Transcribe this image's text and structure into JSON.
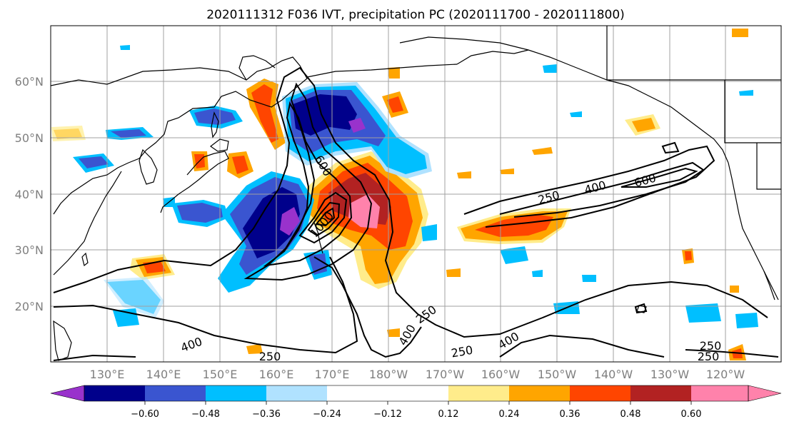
{
  "figure": {
    "title": "2020111312 F036 IVT, precipitation PC (2020111700 - 2020111800)"
  },
  "map": {
    "type": "filled contour map with line contours",
    "lat_labels": [
      "60°N",
      "50°N",
      "40°N",
      "30°N",
      "20°N"
    ],
    "lon_labels": [
      "130°E",
      "140°E",
      "150°E",
      "160°E",
      "170°E",
      "180°W",
      "170°W",
      "160°W",
      "150°W",
      "140°W",
      "130°W",
      "120°W"
    ],
    "grid": true,
    "ivt_contour_labels": [
      "250",
      "400",
      "600",
      "1000",
      "250",
      "400",
      "600",
      "250",
      "400",
      "250",
      "400",
      "250",
      "250",
      "400",
      "250"
    ],
    "ivt_contour_levels": [
      250,
      400,
      600,
      1000
    ],
    "colors": {
      "fill_neg_060": "#9932cc",
      "fill_neg_048": "#00008b",
      "fill_neg_036": "#3a55d0",
      "fill_neg_024": "#00bfff",
      "fill_neg_012": "#b0e2ff",
      "fill_pos_012": "#ffec8b",
      "fill_pos_024": "#ffa500",
      "fill_pos_036": "#ff4500",
      "fill_pos_048": "#b22222",
      "fill_pos_060": "#ff82ab",
      "coast": "#000000",
      "grid": "#a0a0a0"
    }
  },
  "colorbar": {
    "tick_labels": [
      "−0.60",
      "−0.48",
      "−0.36",
      "−0.24",
      "−0.12",
      "0.12",
      "0.24",
      "0.36",
      "0.48",
      "0.60"
    ],
    "segment_colors": [
      "#9932cc",
      "#00008b",
      "#3a55d0",
      "#00bfff",
      "#b0e2ff",
      "#ffffff",
      "#ffec8b",
      "#ffa500",
      "#ff4500",
      "#b22222",
      "#ff82ab"
    ],
    "extend": "both"
  }
}
